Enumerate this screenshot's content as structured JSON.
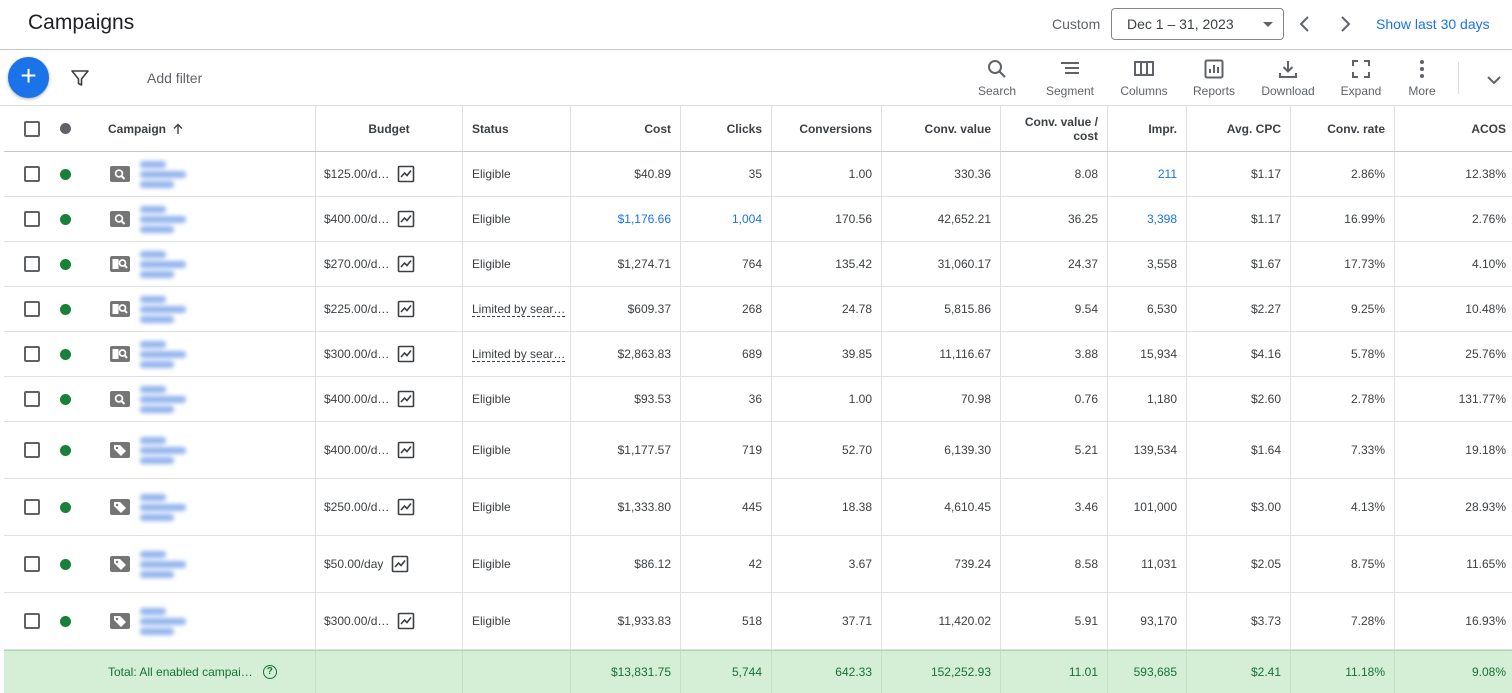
{
  "header": {
    "title": "Campaigns",
    "custom_label": "Custom",
    "date_range": "Dec 1 – 31, 2023",
    "show_last": "Show last 30 days"
  },
  "toolbar": {
    "add_filter": "Add filter",
    "fab_label": "+",
    "tools": [
      {
        "label": "Search",
        "icon": "search-icon"
      },
      {
        "label": "Segment",
        "icon": "segment-icon"
      },
      {
        "label": "Columns",
        "icon": "columns-icon"
      },
      {
        "label": "Reports",
        "icon": "reports-icon"
      },
      {
        "label": "Download",
        "icon": "download-icon"
      },
      {
        "label": "Expand",
        "icon": "expand-icon"
      },
      {
        "label": "More",
        "icon": "more-vert-icon"
      }
    ]
  },
  "table": {
    "headers": {
      "campaign": "Campaign",
      "budget": "Budget",
      "status": "Status",
      "cost": "Cost",
      "clicks": "Clicks",
      "conversions": "Conversions",
      "conv_value": "Conv. value",
      "conv_value_cost_1": "Conv. value /",
      "conv_value_cost_2": "cost",
      "impr": "Impr.",
      "avg_cpc": "Avg. CPC",
      "conv_rate": "Conv. rate",
      "acos": "ACOS"
    },
    "rows": [
      {
        "type": "search",
        "budget": "$125.00/d…",
        "status": "Eligible",
        "status_limited": false,
        "cost": "$40.89",
        "cost_link": false,
        "clicks": "35",
        "clicks_link": false,
        "conversions": "1.00",
        "conv_value": "330.36",
        "conv_value_cost": "8.08",
        "impr": "211",
        "impr_link": true,
        "avg_cpc": "$1.17",
        "conv_rate": "2.86%",
        "acos": "12.38%"
      },
      {
        "type": "search",
        "budget": "$400.00/d…",
        "status": "Eligible",
        "status_limited": false,
        "cost": "$1,176.66",
        "cost_link": true,
        "clicks": "1,004",
        "clicks_link": true,
        "conversions": "170.56",
        "conv_value": "42,652.21",
        "conv_value_cost": "36.25",
        "impr": "3,398",
        "impr_link": true,
        "avg_cpc": "$1.17",
        "conv_rate": "16.99%",
        "acos": "2.76%"
      },
      {
        "type": "dsa",
        "budget": "$270.00/d…",
        "status": "Eligible",
        "status_limited": false,
        "cost": "$1,274.71",
        "cost_link": false,
        "clicks": "764",
        "clicks_link": false,
        "conversions": "135.42",
        "conv_value": "31,060.17",
        "conv_value_cost": "24.37",
        "impr": "3,558",
        "impr_link": false,
        "avg_cpc": "$1.67",
        "conv_rate": "17.73%",
        "acos": "4.10%"
      },
      {
        "type": "dsa",
        "budget": "$225.00/d…",
        "status": "Limited by sear…",
        "status_limited": true,
        "cost": "$609.37",
        "cost_link": false,
        "clicks": "268",
        "clicks_link": false,
        "conversions": "24.78",
        "conv_value": "5,815.86",
        "conv_value_cost": "9.54",
        "impr": "6,530",
        "impr_link": false,
        "avg_cpc": "$2.27",
        "conv_rate": "9.25%",
        "acos": "10.48%"
      },
      {
        "type": "dsa",
        "budget": "$300.00/d…",
        "status": "Limited by sear…",
        "status_limited": true,
        "cost": "$2,863.83",
        "cost_link": false,
        "clicks": "689",
        "clicks_link": false,
        "conversions": "39.85",
        "conv_value": "11,116.67",
        "conv_value_cost": "3.88",
        "impr": "15,934",
        "impr_link": false,
        "avg_cpc": "$4.16",
        "conv_rate": "5.78%",
        "acos": "25.76%"
      },
      {
        "type": "search",
        "budget": "$400.00/d…",
        "status": "Eligible",
        "status_limited": false,
        "cost": "$93.53",
        "cost_link": false,
        "clicks": "36",
        "clicks_link": false,
        "conversions": "1.00",
        "conv_value": "70.98",
        "conv_value_cost": "0.76",
        "impr": "1,180",
        "impr_link": false,
        "avg_cpc": "$2.60",
        "conv_rate": "2.78%",
        "acos": "131.77%"
      },
      {
        "type": "shopping",
        "budget": "$400.00/d…",
        "status": "Eligible",
        "status_limited": false,
        "cost": "$1,177.57",
        "cost_link": false,
        "clicks": "719",
        "clicks_link": false,
        "conversions": "52.70",
        "conv_value": "6,139.30",
        "conv_value_cost": "5.21",
        "impr": "139,534",
        "impr_link": false,
        "avg_cpc": "$1.64",
        "conv_rate": "7.33%",
        "acos": "19.18%"
      },
      {
        "type": "shopping",
        "budget": "$250.00/d…",
        "status": "Eligible",
        "status_limited": false,
        "cost": "$1,333.80",
        "cost_link": false,
        "clicks": "445",
        "clicks_link": false,
        "conversions": "18.38",
        "conv_value": "4,610.45",
        "conv_value_cost": "3.46",
        "impr": "101,000",
        "impr_link": false,
        "avg_cpc": "$3.00",
        "conv_rate": "4.13%",
        "acos": "28.93%"
      },
      {
        "type": "shopping",
        "budget": "$50.00/day",
        "status": "Eligible",
        "status_limited": false,
        "cost": "$86.12",
        "cost_link": false,
        "clicks": "42",
        "clicks_link": false,
        "conversions": "3.67",
        "conv_value": "739.24",
        "conv_value_cost": "8.58",
        "impr": "11,031",
        "impr_link": false,
        "avg_cpc": "$2.05",
        "conv_rate": "8.75%",
        "acos": "11.65%"
      },
      {
        "type": "shopping",
        "budget": "$300.00/d…",
        "status": "Eligible",
        "status_limited": false,
        "cost": "$1,933.83",
        "cost_link": false,
        "clicks": "518",
        "clicks_link": false,
        "conversions": "37.71",
        "conv_value": "11,420.02",
        "conv_value_cost": "5.91",
        "impr": "93,170",
        "impr_link": false,
        "avg_cpc": "$3.73",
        "conv_rate": "7.28%",
        "acos": "16.93%"
      }
    ],
    "total": {
      "label": "Total: All enabled campai…",
      "cost": "$13,831.75",
      "clicks": "5,744",
      "conversions": "642.33",
      "conv_value": "152,252.93",
      "conv_value_cost": "11.01",
      "impr": "593,685",
      "avg_cpc": "$2.41",
      "conv_rate": "11.18%",
      "acos": "9.08%"
    }
  },
  "colors": {
    "accent": "#1a73e8",
    "enabled": "#188038",
    "total_bg": "#d4efd5",
    "total_text": "#137333"
  }
}
